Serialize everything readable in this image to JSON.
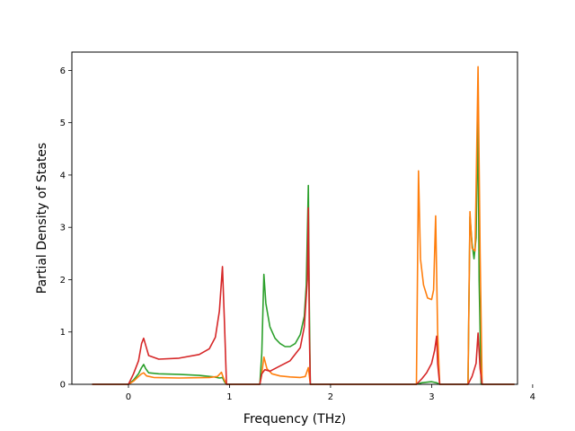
{
  "chart_data": {
    "type": "line",
    "title": "",
    "xlabel": "Frequency (THz)",
    "ylabel": "Partial Density of States",
    "xlim": [
      -0.56,
      3.85
    ],
    "ylim": [
      0,
      6.35
    ],
    "x_ticks": [
      0,
      1,
      2,
      3,
      4
    ],
    "y_ticks": [
      0,
      1,
      2,
      3,
      4,
      5,
      6
    ],
    "grid": false,
    "legend": "none",
    "series": [
      {
        "color": "#2ca02c",
        "points": [
          [
            -0.36,
            0
          ],
          [
            0,
            0
          ],
          [
            0.05,
            0.08
          ],
          [
            0.1,
            0.2
          ],
          [
            0.13,
            0.32
          ],
          [
            0.15,
            0.38
          ],
          [
            0.17,
            0.3
          ],
          [
            0.2,
            0.22
          ],
          [
            0.3,
            0.2
          ],
          [
            0.5,
            0.19
          ],
          [
            0.7,
            0.17
          ],
          [
            0.85,
            0.14
          ],
          [
            0.9,
            0.12
          ],
          [
            0.93,
            0.13
          ],
          [
            0.95,
            0.05
          ],
          [
            0.97,
            0
          ],
          [
            1.3,
            0
          ],
          [
            1.32,
            0.6
          ],
          [
            1.34,
            2.1
          ],
          [
            1.36,
            1.55
          ],
          [
            1.4,
            1.1
          ],
          [
            1.45,
            0.88
          ],
          [
            1.5,
            0.78
          ],
          [
            1.55,
            0.72
          ],
          [
            1.6,
            0.72
          ],
          [
            1.65,
            0.78
          ],
          [
            1.7,
            0.95
          ],
          [
            1.74,
            1.3
          ],
          [
            1.76,
            1.9
          ],
          [
            1.78,
            3.8
          ],
          [
            1.79,
            1.5
          ],
          [
            1.8,
            0
          ],
          [
            2.85,
            0
          ],
          [
            2.9,
            0.03
          ],
          [
            3.0,
            0.05
          ],
          [
            3.05,
            0.03
          ],
          [
            3.08,
            0
          ],
          [
            3.36,
            0
          ],
          [
            3.38,
            3.2
          ],
          [
            3.4,
            2.7
          ],
          [
            3.42,
            2.4
          ],
          [
            3.44,
            2.8
          ],
          [
            3.46,
            5.15
          ],
          [
            3.47,
            2.0
          ],
          [
            3.49,
            0
          ],
          [
            3.82,
            0
          ]
        ]
      },
      {
        "color": "#ff7f0e",
        "points": [
          [
            -0.36,
            0
          ],
          [
            0,
            0
          ],
          [
            0.05,
            0.06
          ],
          [
            0.1,
            0.15
          ],
          [
            0.13,
            0.2
          ],
          [
            0.15,
            0.22
          ],
          [
            0.18,
            0.16
          ],
          [
            0.25,
            0.13
          ],
          [
            0.5,
            0.12
          ],
          [
            0.8,
            0.13
          ],
          [
            0.88,
            0.15
          ],
          [
            0.92,
            0.23
          ],
          [
            0.94,
            0.12
          ],
          [
            0.97,
            0
          ],
          [
            1.3,
            0
          ],
          [
            1.32,
            0.2
          ],
          [
            1.34,
            0.52
          ],
          [
            1.37,
            0.3
          ],
          [
            1.42,
            0.2
          ],
          [
            1.5,
            0.16
          ],
          [
            1.6,
            0.14
          ],
          [
            1.7,
            0.13
          ],
          [
            1.75,
            0.15
          ],
          [
            1.78,
            0.32
          ],
          [
            1.8,
            0
          ],
          [
            2.85,
            0
          ],
          [
            2.87,
            4.08
          ],
          [
            2.89,
            2.4
          ],
          [
            2.92,
            1.9
          ],
          [
            2.96,
            1.65
          ],
          [
            3.0,
            1.62
          ],
          [
            3.02,
            1.8
          ],
          [
            3.04,
            3.22
          ],
          [
            3.06,
            1.0
          ],
          [
            3.08,
            0
          ],
          [
            3.36,
            0
          ],
          [
            3.38,
            3.3
          ],
          [
            3.4,
            2.6
          ],
          [
            3.43,
            2.55
          ],
          [
            3.46,
            6.07
          ],
          [
            3.48,
            2.5
          ],
          [
            3.5,
            0
          ],
          [
            3.82,
            0
          ]
        ]
      },
      {
        "color": "#d62728",
        "points": [
          [
            -0.36,
            0
          ],
          [
            0,
            0
          ],
          [
            0.05,
            0.2
          ],
          [
            0.1,
            0.45
          ],
          [
            0.13,
            0.78
          ],
          [
            0.15,
            0.88
          ],
          [
            0.17,
            0.75
          ],
          [
            0.2,
            0.55
          ],
          [
            0.3,
            0.48
          ],
          [
            0.5,
            0.5
          ],
          [
            0.7,
            0.57
          ],
          [
            0.8,
            0.68
          ],
          [
            0.86,
            0.9
          ],
          [
            0.9,
            1.4
          ],
          [
            0.93,
            2.25
          ],
          [
            0.95,
            1.2
          ],
          [
            0.97,
            0
          ],
          [
            1.3,
            0
          ],
          [
            1.32,
            0.2
          ],
          [
            1.35,
            0.28
          ],
          [
            1.4,
            0.25
          ],
          [
            1.5,
            0.35
          ],
          [
            1.6,
            0.45
          ],
          [
            1.7,
            0.7
          ],
          [
            1.74,
            1.1
          ],
          [
            1.77,
            2.0
          ],
          [
            1.78,
            3.37
          ],
          [
            1.79,
            1.0
          ],
          [
            1.8,
            0
          ],
          [
            2.85,
            0
          ],
          [
            2.9,
            0.1
          ],
          [
            2.95,
            0.22
          ],
          [
            3.0,
            0.4
          ],
          [
            3.03,
            0.65
          ],
          [
            3.05,
            0.92
          ],
          [
            3.06,
            0.4
          ],
          [
            3.08,
            0
          ],
          [
            3.36,
            0
          ],
          [
            3.4,
            0.15
          ],
          [
            3.44,
            0.4
          ],
          [
            3.46,
            0.98
          ],
          [
            3.48,
            0.3
          ],
          [
            3.5,
            0
          ],
          [
            3.82,
            0
          ]
        ]
      }
    ]
  }
}
